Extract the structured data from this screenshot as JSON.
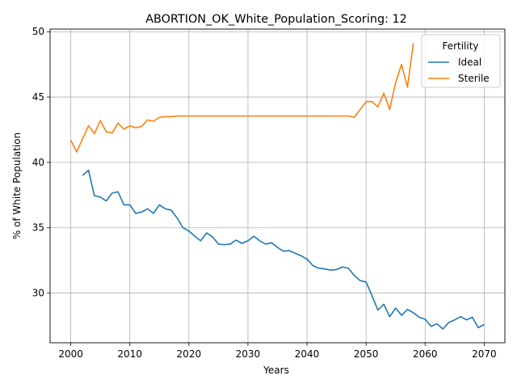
{
  "chart_data": {
    "type": "line",
    "title": "ABORTION_OK_White_Population_Scoring: 12",
    "xlabel": "Years",
    "ylabel": "% of White Population",
    "xlim": [
      1996.5,
      2073.5
    ],
    "ylim": [
      26.2,
      50.2
    ],
    "xticks": [
      2000,
      2010,
      2020,
      2030,
      2040,
      2050,
      2060,
      2070
    ],
    "yticks": [
      30,
      35,
      40,
      45,
      50
    ],
    "grid": true,
    "legend": {
      "title": "Fertility",
      "placement": "top-right"
    },
    "colors": {
      "Ideal": "#1f77b4",
      "Sterile": "#ff7f0e"
    },
    "series": [
      {
        "name": "Ideal",
        "x": [
          2002,
          2003,
          2004,
          2005,
          2006,
          2007,
          2008,
          2009,
          2010,
          2011,
          2012,
          2013,
          2014,
          2015,
          2016,
          2017,
          2018,
          2019,
          2020,
          2021,
          2022,
          2023,
          2024,
          2025,
          2026,
          2027,
          2028,
          2029,
          2030,
          2031,
          2032,
          2033,
          2034,
          2035,
          2036,
          2037,
          2038,
          2039,
          2040,
          2041,
          2042,
          2043,
          2044,
          2045,
          2046,
          2047,
          2048,
          2049,
          2050,
          2051,
          2052,
          2053,
          2054,
          2055,
          2056,
          2057,
          2058,
          2059,
          2060,
          2061,
          2062,
          2063,
          2064,
          2065,
          2066,
          2067,
          2068,
          2069,
          2070
        ],
        "values": [
          39.0,
          39.4,
          37.45,
          37.35,
          37.05,
          37.65,
          37.75,
          36.75,
          36.75,
          36.1,
          36.2,
          36.45,
          36.1,
          36.75,
          36.45,
          36.35,
          35.75,
          35.0,
          34.75,
          34.35,
          34.0,
          34.6,
          34.3,
          33.75,
          33.7,
          33.75,
          34.05,
          33.8,
          34.0,
          34.35,
          34.0,
          33.75,
          33.85,
          33.5,
          33.2,
          33.25,
          33.05,
          32.85,
          32.6,
          32.1,
          31.9,
          31.85,
          31.75,
          31.8,
          32.0,
          31.9,
          31.35,
          30.95,
          30.85,
          29.8,
          28.7,
          29.15,
          28.2,
          28.85,
          28.3,
          28.75,
          28.5,
          28.15,
          28.0,
          27.45,
          27.65,
          27.25,
          27.75,
          27.95,
          28.2,
          27.95,
          28.15,
          27.35,
          27.6
        ]
      },
      {
        "name": "Sterile",
        "x": [
          2000,
          2001,
          2002,
          2003,
          2004,
          2005,
          2006,
          2007,
          2008,
          2009,
          2010,
          2011,
          2012,
          2013,
          2014,
          2015,
          2016,
          2017,
          2018,
          2019,
          2020,
          2021,
          2022,
          2023,
          2024,
          2025,
          2026,
          2027,
          2028,
          2029,
          2030,
          2031,
          2032,
          2033,
          2034,
          2035,
          2036,
          2037,
          2038,
          2039,
          2040,
          2041,
          2042,
          2043,
          2044,
          2045,
          2046,
          2047,
          2048,
          2049,
          2050,
          2051,
          2052,
          2053,
          2054,
          2055,
          2056,
          2057,
          2058
        ],
        "values": [
          41.7,
          40.8,
          41.8,
          42.8,
          42.2,
          43.2,
          42.35,
          42.25,
          43.0,
          42.55,
          42.8,
          42.65,
          42.75,
          43.25,
          43.15,
          43.45,
          43.5,
          43.5,
          43.55,
          43.55,
          43.55,
          43.55,
          43.55,
          43.55,
          43.55,
          43.55,
          43.55,
          43.55,
          43.55,
          43.55,
          43.55,
          43.55,
          43.55,
          43.55,
          43.55,
          43.55,
          43.55,
          43.55,
          43.55,
          43.55,
          43.55,
          43.55,
          43.55,
          43.55,
          43.55,
          43.55,
          43.55,
          43.55,
          43.45,
          44.05,
          44.65,
          44.65,
          44.25,
          45.3,
          44.05,
          46.1,
          47.5,
          45.75,
          49.1
        ]
      }
    ]
  }
}
